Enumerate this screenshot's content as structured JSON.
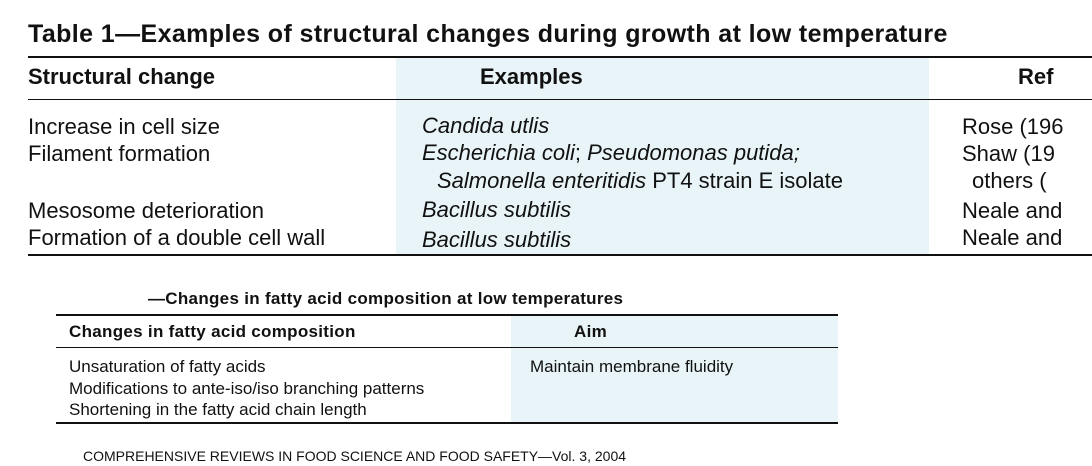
{
  "table1": {
    "title": "Table 1—Examples of structural changes during growth at low temperature",
    "headers": {
      "change": "Structural change",
      "examples": "Examples",
      "refs": "Ref"
    },
    "rows": [
      {
        "change": "Increase in cell size",
        "ex1": "Candida utlis",
        "ref1": "Rose (196"
      },
      {
        "change": "Filament formation",
        "ex1_a": "Escherichia coli",
        "ex1_b": "; ",
        "ex1_c": "Pseudomonas putida;",
        "ex2_a": "Salmonella enteritidis",
        "ex2_b": " PT4 strain E isolate",
        "ref1": "Shaw (19",
        "ref2": "others ("
      },
      {
        "change": "Mesosome deterioration",
        "ex1": "Bacillus subtilis",
        "ref1": "Neale and"
      },
      {
        "change": "Formation of a double cell wall",
        "ex1": "Bacillus subtilis",
        "ref1": "Neale and"
      }
    ]
  },
  "table2": {
    "title": "—Changes in fatty acid composition at low temperatures",
    "headers": {
      "changes": "Changes in fatty acid composition",
      "aim": "Aim"
    },
    "changes": [
      "Unsaturation of fatty acids",
      "Modifications to ante-iso/iso branching patterns",
      "Shortening in the fatty acid chain length"
    ],
    "aim": "Maintain membrane fluidity"
  },
  "footer": "COMPREHENSIVE REVIEWS IN FOOD SCIENCE AND FOOD SAFETY—Vol. 3, 2004",
  "colors": {
    "shade": "#e8f4f7",
    "text": "#111111"
  }
}
